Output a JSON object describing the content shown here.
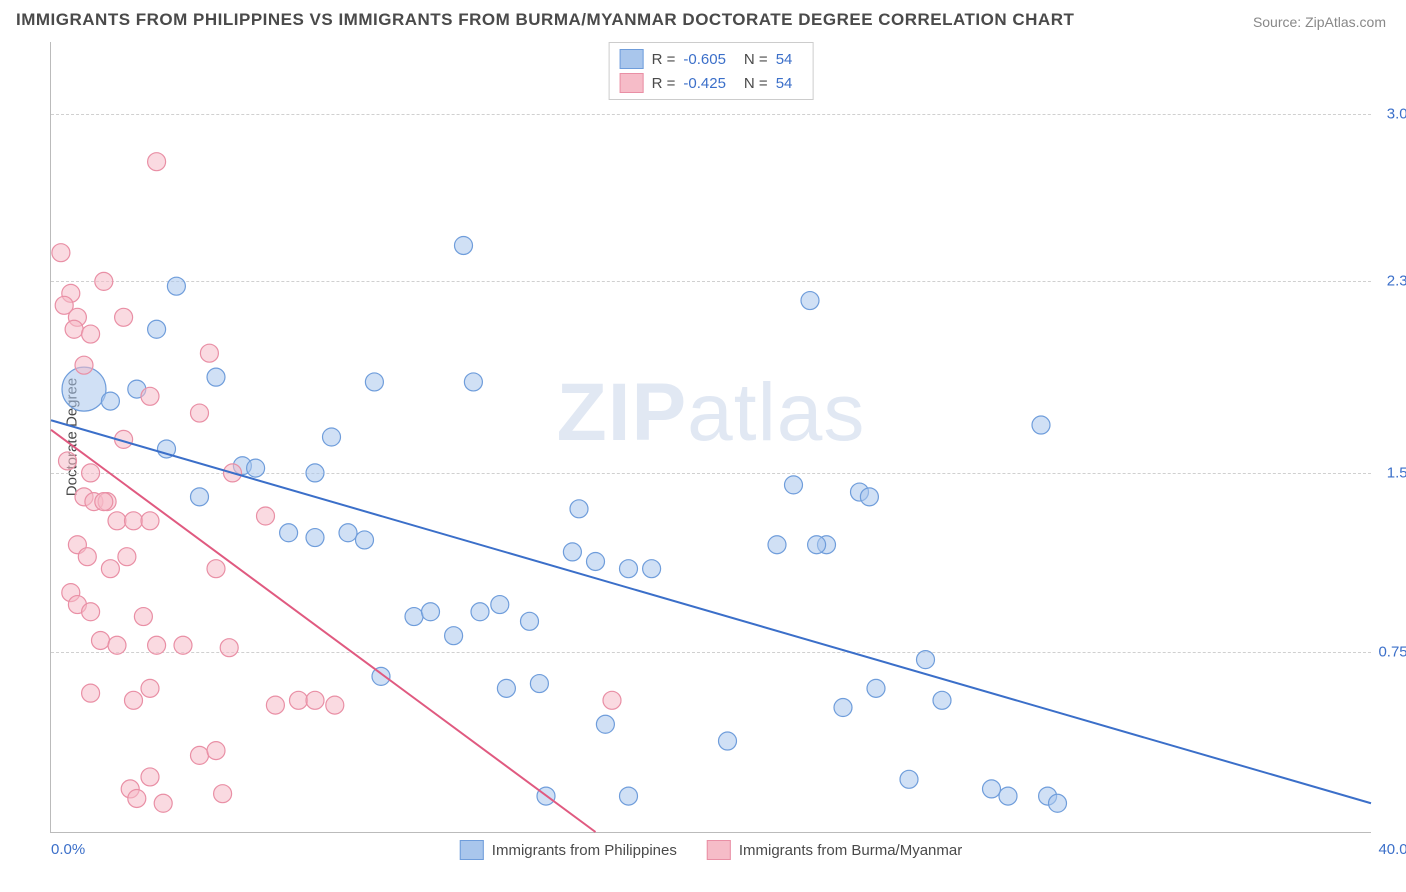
{
  "title": "IMMIGRANTS FROM PHILIPPINES VS IMMIGRANTS FROM BURMA/MYANMAR DOCTORATE DEGREE CORRELATION CHART",
  "source": "Source: ZipAtlas.com",
  "watermark_bold": "ZIP",
  "watermark_light": "atlas",
  "chart": {
    "type": "scatter",
    "y_axis_title": "Doctorate Degree",
    "xlim": [
      0,
      40
    ],
    "ylim": [
      0,
      3.3
    ],
    "x_ticks": [
      {
        "v": 0,
        "label": "0.0%"
      },
      {
        "v": 40,
        "label": "40.0%"
      }
    ],
    "y_ticks": [
      {
        "v": 0.75,
        "label": "0.75%"
      },
      {
        "v": 1.5,
        "label": "1.5%"
      },
      {
        "v": 2.3,
        "label": "2.3%"
      },
      {
        "v": 3.0,
        "label": "3.0%"
      }
    ],
    "grid_color": "#d0d0d0",
    "axis_color": "#bbbbbb",
    "background_color": "#ffffff",
    "tick_label_color": "#3b6fc9",
    "tick_fontsize": 15,
    "title_fontsize": 17,
    "title_color": "#4a4a4a",
    "marker_radius": 9,
    "marker_opacity": 0.55,
    "big_marker_radius": 22,
    "line_width": 2,
    "series": [
      {
        "name": "Immigrants from Philippines",
        "fill_color": "#a9c6ec",
        "stroke_color": "#6f9ddb",
        "line_color": "#3b6fc9",
        "R": "-0.605",
        "N": "54",
        "regression": {
          "x1": 0,
          "y1": 1.72,
          "x2": 40,
          "y2": 0.12
        },
        "points": [
          {
            "x": 1.0,
            "y": 1.85,
            "r": 22
          },
          {
            "x": 1.8,
            "y": 1.8
          },
          {
            "x": 2.6,
            "y": 1.85
          },
          {
            "x": 3.8,
            "y": 2.28
          },
          {
            "x": 5.8,
            "y": 1.53
          },
          {
            "x": 3.5,
            "y": 1.6
          },
          {
            "x": 6.2,
            "y": 1.52
          },
          {
            "x": 8.5,
            "y": 1.65
          },
          {
            "x": 8.0,
            "y": 1.5
          },
          {
            "x": 7.2,
            "y": 1.25
          },
          {
            "x": 8.0,
            "y": 1.23
          },
          {
            "x": 9.8,
            "y": 1.88
          },
          {
            "x": 9.0,
            "y": 1.25
          },
          {
            "x": 9.5,
            "y": 1.22
          },
          {
            "x": 10.0,
            "y": 0.65
          },
          {
            "x": 11.0,
            "y": 0.9
          },
          {
            "x": 12.5,
            "y": 2.45
          },
          {
            "x": 12.8,
            "y": 1.88
          },
          {
            "x": 12.2,
            "y": 0.82
          },
          {
            "x": 13.0,
            "y": 0.92
          },
          {
            "x": 13.8,
            "y": 0.6
          },
          {
            "x": 14.5,
            "y": 0.88
          },
          {
            "x": 14.8,
            "y": 0.62
          },
          {
            "x": 15.8,
            "y": 1.17
          },
          {
            "x": 16.0,
            "y": 1.35
          },
          {
            "x": 16.5,
            "y": 1.13
          },
          {
            "x": 16.8,
            "y": 0.45
          },
          {
            "x": 17.5,
            "y": 0.15
          },
          {
            "x": 17.5,
            "y": 1.1
          },
          {
            "x": 18.2,
            "y": 1.1
          },
          {
            "x": 22.0,
            "y": 1.2
          },
          {
            "x": 20.5,
            "y": 0.38
          },
          {
            "x": 22.5,
            "y": 1.45
          },
          {
            "x": 23.0,
            "y": 2.22
          },
          {
            "x": 23.5,
            "y": 1.2
          },
          {
            "x": 24.5,
            "y": 1.42
          },
          {
            "x": 24.0,
            "y": 0.52
          },
          {
            "x": 25.0,
            "y": 0.6
          },
          {
            "x": 26.0,
            "y": 0.22
          },
          {
            "x": 26.5,
            "y": 0.72
          },
          {
            "x": 27.0,
            "y": 0.55
          },
          {
            "x": 28.5,
            "y": 0.18
          },
          {
            "x": 29.0,
            "y": 0.15
          },
          {
            "x": 30.0,
            "y": 1.7
          },
          {
            "x": 30.2,
            "y": 0.15
          },
          {
            "x": 30.5,
            "y": 0.12
          },
          {
            "x": 23.2,
            "y": 1.2
          },
          {
            "x": 24.8,
            "y": 1.4
          },
          {
            "x": 15.0,
            "y": 0.15
          },
          {
            "x": 13.6,
            "y": 0.95
          },
          {
            "x": 11.5,
            "y": 0.92
          },
          {
            "x": 4.5,
            "y": 1.4
          },
          {
            "x": 3.2,
            "y": 2.1
          },
          {
            "x": 5.0,
            "y": 1.9
          }
        ]
      },
      {
        "name": "Immigrants from Burma/Myanmar",
        "fill_color": "#f6bcc8",
        "stroke_color": "#e98fa5",
        "line_color": "#e05a80",
        "R": "-0.425",
        "N": "54",
        "regression": {
          "x1": 0,
          "y1": 1.68,
          "x2": 16.5,
          "y2": 0
        },
        "points": [
          {
            "x": 0.3,
            "y": 2.42
          },
          {
            "x": 0.6,
            "y": 2.25
          },
          {
            "x": 0.4,
            "y": 2.2
          },
          {
            "x": 0.8,
            "y": 2.15
          },
          {
            "x": 0.7,
            "y": 2.1
          },
          {
            "x": 1.2,
            "y": 2.08
          },
          {
            "x": 1.0,
            "y": 1.95
          },
          {
            "x": 1.6,
            "y": 2.3
          },
          {
            "x": 2.2,
            "y": 2.15
          },
          {
            "x": 3.0,
            "y": 1.82
          },
          {
            "x": 3.2,
            "y": 2.8
          },
          {
            "x": 0.5,
            "y": 1.55
          },
          {
            "x": 1.2,
            "y": 1.5
          },
          {
            "x": 0.8,
            "y": 1.2
          },
          {
            "x": 1.0,
            "y": 1.4
          },
          {
            "x": 1.3,
            "y": 1.38
          },
          {
            "x": 1.7,
            "y": 1.38
          },
          {
            "x": 2.3,
            "y": 1.15
          },
          {
            "x": 1.1,
            "y": 1.15
          },
          {
            "x": 1.8,
            "y": 1.1
          },
          {
            "x": 0.6,
            "y": 1.0
          },
          {
            "x": 0.8,
            "y": 0.95
          },
          {
            "x": 1.2,
            "y": 0.92
          },
          {
            "x": 2.0,
            "y": 1.3
          },
          {
            "x": 2.5,
            "y": 1.3
          },
          {
            "x": 3.0,
            "y": 1.3
          },
          {
            "x": 2.8,
            "y": 0.9
          },
          {
            "x": 1.5,
            "y": 0.8
          },
          {
            "x": 2.0,
            "y": 0.78
          },
          {
            "x": 3.2,
            "y": 0.78
          },
          {
            "x": 3.0,
            "y": 0.6
          },
          {
            "x": 2.5,
            "y": 0.55
          },
          {
            "x": 4.5,
            "y": 1.75
          },
          {
            "x": 4.8,
            "y": 2.0
          },
          {
            "x": 5.0,
            "y": 1.1
          },
          {
            "x": 5.4,
            "y": 0.77
          },
          {
            "x": 6.5,
            "y": 1.32
          },
          {
            "x": 6.8,
            "y": 0.53
          },
          {
            "x": 7.5,
            "y": 0.55
          },
          {
            "x": 8.0,
            "y": 0.55
          },
          {
            "x": 8.6,
            "y": 0.53
          },
          {
            "x": 1.2,
            "y": 0.58
          },
          {
            "x": 2.4,
            "y": 0.18
          },
          {
            "x": 2.6,
            "y": 0.14
          },
          {
            "x": 3.0,
            "y": 0.23
          },
          {
            "x": 3.4,
            "y": 0.12
          },
          {
            "x": 4.0,
            "y": 0.78
          },
          {
            "x": 4.5,
            "y": 0.32
          },
          {
            "x": 5.0,
            "y": 0.34
          },
          {
            "x": 5.2,
            "y": 0.16
          },
          {
            "x": 17.0,
            "y": 0.55
          },
          {
            "x": 2.2,
            "y": 1.64
          },
          {
            "x": 1.6,
            "y": 1.38
          },
          {
            "x": 5.5,
            "y": 1.5
          }
        ]
      }
    ]
  }
}
